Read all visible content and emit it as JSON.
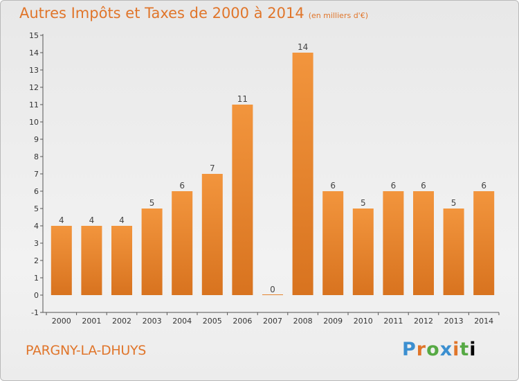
{
  "header": {
    "title": "Autres Impôts et Taxes de 2000 à 2014",
    "unit": "(en milliers d'€)"
  },
  "footer": {
    "commune": "PARGNY-LA-DHUYS",
    "logo_letters": [
      "P",
      "r",
      "o",
      "x",
      "i",
      "t",
      "i"
    ]
  },
  "colors": {
    "bar": "#f2953d",
    "bar_dark": "#d8731f",
    "title": "#e0752a"
  },
  "chart_data": {
    "type": "bar",
    "title": "Autres Impôts et Taxes de 2000 à 2014",
    "subtitle": "(en milliers d'€)",
    "categories": [
      "2000",
      "2001",
      "2002",
      "2003",
      "2004",
      "2005",
      "2006",
      "2007",
      "2008",
      "2009",
      "2010",
      "2011",
      "2012",
      "2013",
      "2014"
    ],
    "values": [
      4,
      4,
      4,
      5,
      6,
      7,
      11,
      0,
      14,
      6,
      5,
      6,
      6,
      5,
      6
    ],
    "data_labels": [
      "4",
      "4",
      "4",
      "5",
      "6",
      "7",
      "11",
      "0",
      "14",
      "6",
      "5",
      "6",
      "6",
      "5",
      "6"
    ],
    "y_ticks": [
      "-1",
      "0",
      "1",
      "2",
      "3",
      "4",
      "5",
      "6",
      "7",
      "8",
      "9",
      "10",
      "11",
      "12",
      "13",
      "14",
      "15"
    ],
    "ylim": [
      -1,
      15
    ],
    "xlabel": "",
    "ylabel": "",
    "grid": false,
    "legend": "none"
  }
}
